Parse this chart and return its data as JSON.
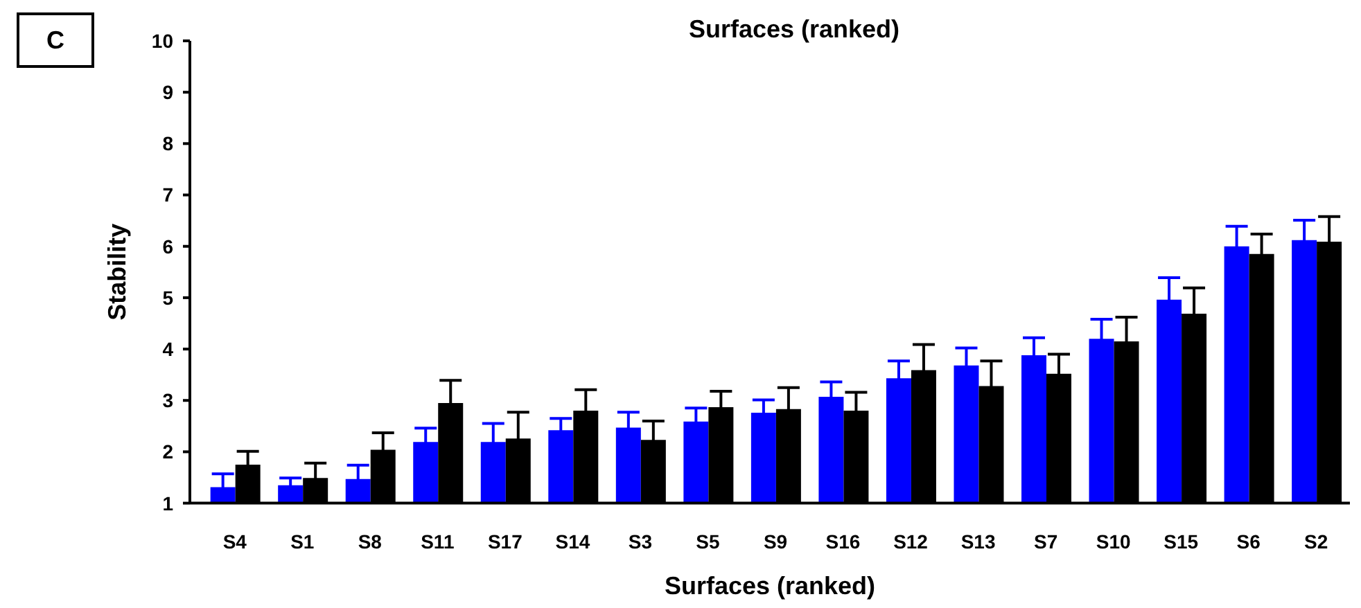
{
  "chart_data": {
    "type": "bar",
    "xlabel": "Surfaces (ranked)",
    "ylabel": "Stability",
    "annotations": [
      "C",
      "Surfaces (ranked)"
    ],
    "categories": [
      "S4",
      "S1",
      "S8",
      "S11",
      "S17",
      "S14",
      "S3",
      "S5",
      "S9",
      "S16",
      "S12",
      "S13",
      "S7",
      "S10",
      "S15",
      "S6",
      "S2"
    ],
    "series": [
      {
        "color": "#0000ff",
        "values": [
          1.31,
          1.35,
          1.47,
          2.19,
          2.19,
          2.42,
          2.47,
          2.59,
          2.76,
          3.07,
          3.43,
          3.68,
          3.88,
          4.2,
          4.96,
          6.0,
          6.12
        ],
        "errors": [
          0.26,
          0.14,
          0.27,
          0.27,
          0.36,
          0.23,
          0.3,
          0.26,
          0.25,
          0.29,
          0.34,
          0.34,
          0.34,
          0.38,
          0.43,
          0.39,
          0.39
        ]
      },
      {
        "color": "#000000",
        "values": [
          1.75,
          1.49,
          2.04,
          2.95,
          2.26,
          2.8,
          2.23,
          2.87,
          2.83,
          2.8,
          3.59,
          3.28,
          3.52,
          4.15,
          4.69,
          5.85,
          6.09
        ],
        "errors": [
          0.26,
          0.29,
          0.33,
          0.44,
          0.51,
          0.41,
          0.37,
          0.31,
          0.42,
          0.36,
          0.5,
          0.49,
          0.38,
          0.47,
          0.5,
          0.39,
          0.49
        ]
      }
    ],
    "ylim": [
      1,
      10
    ],
    "yticks": [
      1,
      2,
      3,
      4,
      5,
      6,
      7,
      8,
      9,
      10
    ]
  }
}
